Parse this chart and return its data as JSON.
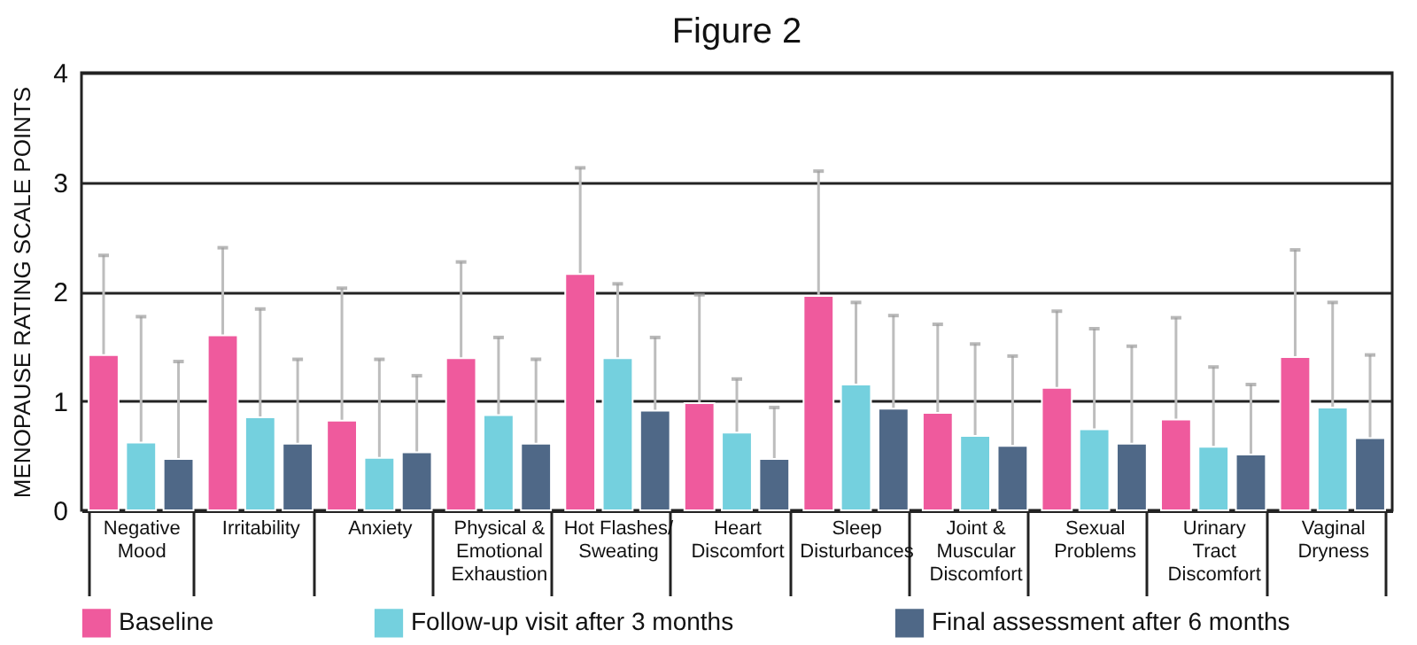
{
  "chart_data": {
    "type": "bar",
    "title": "Figure 2",
    "ylabel": "MENOPAUSE RATING SCALE POINTS",
    "categories": [
      "Negative\nMood",
      "Irritability",
      "Anxiety",
      "Physical &\nEmotional\nExhaustion",
      "Hot Flashes/\nSweating",
      "Heart\nDiscomfort",
      "Sleep\nDisturbances",
      "Joint &\nMuscular\nDiscomfort",
      "Sexual\nProblems",
      "Urinary\nTract\nDiscomfort",
      "Vaginal\nDryness"
    ],
    "series": [
      {
        "name": "Baseline",
        "color": "#ef5a9d",
        "values": [
          1.42,
          1.6,
          0.82,
          1.39,
          2.16,
          0.98,
          1.96,
          0.89,
          1.12,
          0.83,
          1.4
        ],
        "errors": [
          [
            1.42,
            2.33
          ],
          [
            1.6,
            2.4
          ],
          [
            0.82,
            2.03
          ],
          [
            1.39,
            2.27
          ],
          [
            2.16,
            3.13
          ],
          [
            0.98,
            1.97
          ],
          [
            1.96,
            3.1
          ],
          [
            0.89,
            1.7
          ],
          [
            1.12,
            1.82
          ],
          [
            0.83,
            1.76
          ],
          [
            1.4,
            2.38
          ]
        ]
      },
      {
        "name": "Follow-up visit after 3 months",
        "color": "#74d0de",
        "values": [
          0.62,
          0.85,
          0.48,
          0.87,
          1.39,
          0.71,
          1.15,
          0.68,
          0.74,
          0.58,
          0.94
        ],
        "errors": [
          [
            0.62,
            1.77
          ],
          [
            0.85,
            1.84
          ],
          [
            0.48,
            1.38
          ],
          [
            0.87,
            1.58
          ],
          [
            1.39,
            2.07
          ],
          [
            0.71,
            1.2
          ],
          [
            1.15,
            1.9
          ],
          [
            0.68,
            1.52
          ],
          [
            0.74,
            1.66
          ],
          [
            0.58,
            1.31
          ],
          [
            0.94,
            1.9
          ]
        ]
      },
      {
        "name": "Final assessment after 6 months",
        "color": "#4f6887",
        "values": [
          0.47,
          0.61,
          0.53,
          0.61,
          0.91,
          0.47,
          0.93,
          0.59,
          0.61,
          0.51,
          0.66
        ],
        "errors": [
          [
            0.47,
            1.36
          ],
          [
            0.61,
            1.38
          ],
          [
            0.53,
            1.23
          ],
          [
            0.61,
            1.38
          ],
          [
            0.91,
            1.58
          ],
          [
            0.47,
            0.94
          ],
          [
            0.93,
            1.78
          ],
          [
            0.59,
            1.41
          ],
          [
            0.61,
            1.5
          ],
          [
            0.51,
            1.15
          ],
          [
            0.66,
            1.42
          ]
        ]
      }
    ],
    "ylim": [
      0,
      4
    ],
    "yticks": [
      0,
      1,
      2,
      3,
      4
    ],
    "grid": "y",
    "legend": "bottom"
  }
}
